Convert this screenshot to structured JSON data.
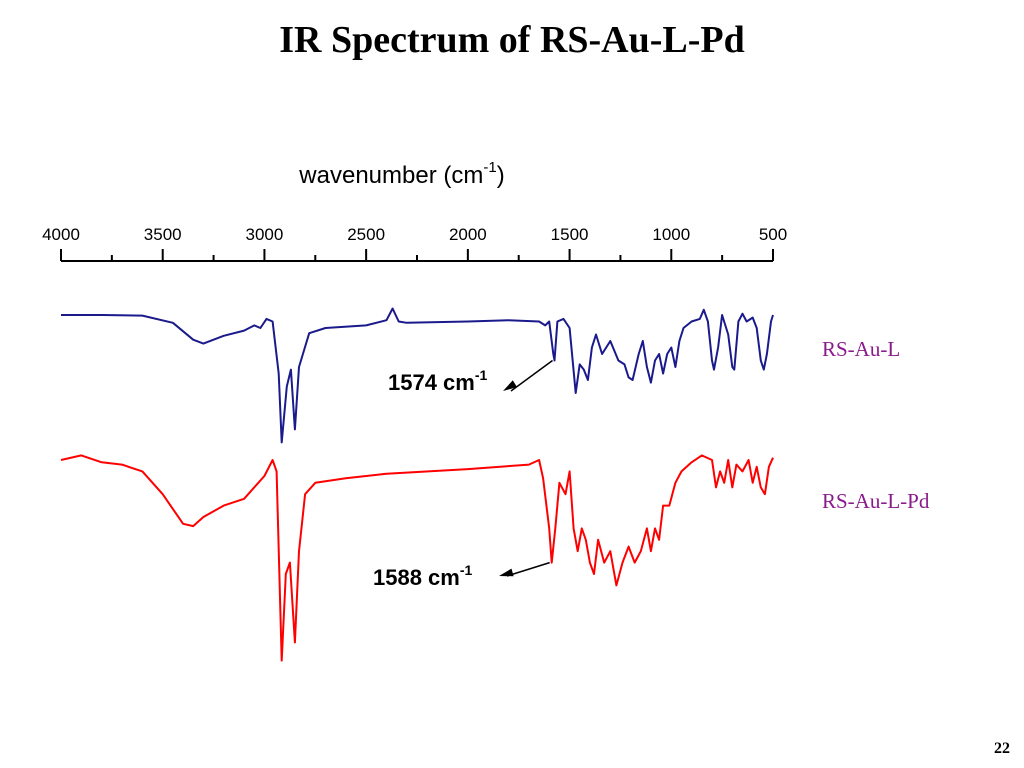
{
  "slide": {
    "title": "IR Spectrum of RS-Au-L-Pd",
    "page_number": "22"
  },
  "chart_data": {
    "type": "line",
    "title": "IR Spectrum of RS-Au-L-Pd",
    "xlabel": "wavenumber (cm",
    "xlabel_sup": "-1",
    "xlabel_close": ")",
    "xlim": [
      4000,
      500
    ],
    "x_ticks": [
      "4000",
      "3500",
      "3000",
      "2500",
      "2000",
      "1500",
      "1000",
      "500"
    ],
    "grid": false,
    "series": [
      {
        "name": "RS-Au-L",
        "color": "#1a1a8c",
        "points": [
          [
            4000,
            0
          ],
          [
            3800,
            0
          ],
          [
            3600,
            0.005
          ],
          [
            3450,
            0.06
          ],
          [
            3350,
            0.19
          ],
          [
            3300,
            0.22
          ],
          [
            3200,
            0.16
          ],
          [
            3100,
            0.12
          ],
          [
            3050,
            0.08
          ],
          [
            3020,
            0.1
          ],
          [
            2990,
            0.03
          ],
          [
            2960,
            0.05
          ],
          [
            2930,
            0.45
          ],
          [
            2915,
            0.98
          ],
          [
            2890,
            0.55
          ],
          [
            2870,
            0.42
          ],
          [
            2850,
            0.88
          ],
          [
            2830,
            0.4
          ],
          [
            2780,
            0.14
          ],
          [
            2700,
            0.1
          ],
          [
            2500,
            0.08
          ],
          [
            2400,
            0.04
          ],
          [
            2370,
            -0.05
          ],
          [
            2340,
            0.05
          ],
          [
            2300,
            0.06
          ],
          [
            2000,
            0.05
          ],
          [
            1800,
            0.04
          ],
          [
            1650,
            0.05
          ],
          [
            1620,
            0.08
          ],
          [
            1600,
            0.05
          ],
          [
            1580,
            0.3
          ],
          [
            1574,
            0.35
          ],
          [
            1560,
            0.05
          ],
          [
            1530,
            0.03
          ],
          [
            1500,
            0.1
          ],
          [
            1470,
            0.6
          ],
          [
            1450,
            0.38
          ],
          [
            1430,
            0.42
          ],
          [
            1410,
            0.5
          ],
          [
            1390,
            0.25
          ],
          [
            1370,
            0.15
          ],
          [
            1340,
            0.3
          ],
          [
            1300,
            0.2
          ],
          [
            1260,
            0.35
          ],
          [
            1230,
            0.38
          ],
          [
            1210,
            0.48
          ],
          [
            1190,
            0.5
          ],
          [
            1160,
            0.3
          ],
          [
            1140,
            0.2
          ],
          [
            1120,
            0.4
          ],
          [
            1100,
            0.52
          ],
          [
            1080,
            0.35
          ],
          [
            1060,
            0.3
          ],
          [
            1040,
            0.45
          ],
          [
            1020,
            0.3
          ],
          [
            1000,
            0.25
          ],
          [
            980,
            0.4
          ],
          [
            960,
            0.2
          ],
          [
            940,
            0.1
          ],
          [
            900,
            0.05
          ],
          [
            860,
            0.03
          ],
          [
            840,
            -0.04
          ],
          [
            820,
            0.05
          ],
          [
            800,
            0.35
          ],
          [
            790,
            0.42
          ],
          [
            770,
            0.25
          ],
          [
            750,
            0.0
          ],
          [
            720,
            0.15
          ],
          [
            700,
            0.4
          ],
          [
            690,
            0.42
          ],
          [
            670,
            0.05
          ],
          [
            650,
            -0.01
          ],
          [
            630,
            0.05
          ],
          [
            600,
            0.02
          ],
          [
            580,
            0.1
          ],
          [
            560,
            0.35
          ],
          [
            545,
            0.42
          ],
          [
            530,
            0.3
          ],
          [
            510,
            0.05
          ],
          [
            500,
            0.0
          ]
        ]
      },
      {
        "name": "RS-Au-L-Pd",
        "color": "#ff0000",
        "points": [
          [
            4000,
            0
          ],
          [
            3900,
            -0.02
          ],
          [
            3800,
            0.01
          ],
          [
            3700,
            0.02
          ],
          [
            3600,
            0.05
          ],
          [
            3500,
            0.15
          ],
          [
            3400,
            0.28
          ],
          [
            3350,
            0.29
          ],
          [
            3300,
            0.25
          ],
          [
            3200,
            0.2
          ],
          [
            3100,
            0.17
          ],
          [
            3000,
            0.07
          ],
          [
            2960,
            0.0
          ],
          [
            2940,
            0.05
          ],
          [
            2915,
            0.88
          ],
          [
            2895,
            0.5
          ],
          [
            2875,
            0.45
          ],
          [
            2850,
            0.8
          ],
          [
            2830,
            0.4
          ],
          [
            2800,
            0.15
          ],
          [
            2750,
            0.1
          ],
          [
            2600,
            0.08
          ],
          [
            2400,
            0.06
          ],
          [
            2000,
            0.04
          ],
          [
            1700,
            0.02
          ],
          [
            1650,
            0.0
          ],
          [
            1630,
            0.08
          ],
          [
            1600,
            0.3
          ],
          [
            1588,
            0.45
          ],
          [
            1570,
            0.3
          ],
          [
            1550,
            0.1
          ],
          [
            1520,
            0.15
          ],
          [
            1500,
            0.05
          ],
          [
            1480,
            0.3
          ],
          [
            1460,
            0.4
          ],
          [
            1440,
            0.3
          ],
          [
            1420,
            0.35
          ],
          [
            1400,
            0.45
          ],
          [
            1380,
            0.5
          ],
          [
            1360,
            0.35
          ],
          [
            1330,
            0.45
          ],
          [
            1300,
            0.4
          ],
          [
            1270,
            0.55
          ],
          [
            1240,
            0.45
          ],
          [
            1210,
            0.38
          ],
          [
            1180,
            0.45
          ],
          [
            1150,
            0.4
          ],
          [
            1120,
            0.3
          ],
          [
            1100,
            0.4
          ],
          [
            1080,
            0.3
          ],
          [
            1060,
            0.35
          ],
          [
            1040,
            0.2
          ],
          [
            1010,
            0.2
          ],
          [
            980,
            0.1
          ],
          [
            950,
            0.05
          ],
          [
            900,
            0.01
          ],
          [
            850,
            -0.02
          ],
          [
            800,
            0.0
          ],
          [
            780,
            0.12
          ],
          [
            760,
            0.05
          ],
          [
            740,
            0.1
          ],
          [
            720,
            0.0
          ],
          [
            700,
            0.12
          ],
          [
            680,
            0.02
          ],
          [
            650,
            0.05
          ],
          [
            620,
            0.0
          ],
          [
            600,
            0.1
          ],
          [
            580,
            0.03
          ],
          [
            560,
            0.12
          ],
          [
            540,
            0.15
          ],
          [
            520,
            0.03
          ],
          [
            500,
            -0.01
          ]
        ]
      }
    ],
    "annotations": [
      {
        "text": "1574 cm",
        "sup": "-1",
        "series": "RS-Au-L",
        "x": 1574
      },
      {
        "text": "1588 cm",
        "sup": "-1",
        "series": "RS-Au-L-Pd",
        "x": 1588
      }
    ]
  }
}
